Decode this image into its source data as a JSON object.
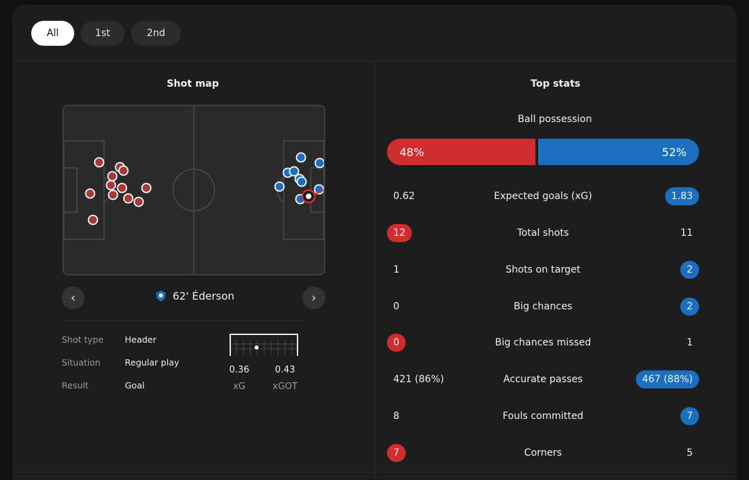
{
  "tabs": [
    {
      "label": "All",
      "active": true
    },
    {
      "label": "1st",
      "active": false
    },
    {
      "label": "2nd",
      "active": false
    }
  ],
  "shot_map": {
    "title": "Shot map",
    "selected_shot": {
      "minute_player": "62' Éderson",
      "team_crest": "atalanta-crest-icon"
    },
    "details": [
      {
        "label": "Shot type",
        "value": "Header"
      },
      {
        "label": "Situation",
        "value": "Regular play"
      },
      {
        "label": "Result",
        "value": "Goal"
      }
    ],
    "xg": {
      "value": "0.36",
      "label": "xG"
    },
    "xgot": {
      "value": "0.43",
      "label": "xGOT"
    },
    "colors": {
      "home": "#a83a35",
      "away": "#1b6fbe",
      "selected": "#d02e2c"
    }
  },
  "top_stats": {
    "title": "Top stats",
    "possession": {
      "label": "Ball possession",
      "home": "48%",
      "away": "52%",
      "home_value": 48,
      "away_value": 52
    },
    "rows": [
      {
        "label": "Expected goals (xG)",
        "home": "0.62",
        "away": "1.83",
        "highlight": "away"
      },
      {
        "label": "Total shots",
        "home": "12",
        "away": "11",
        "highlight": "home"
      },
      {
        "label": "Shots on target",
        "home": "1",
        "away": "2",
        "highlight": "away"
      },
      {
        "label": "Big chances",
        "home": "0",
        "away": "2",
        "highlight": "away"
      },
      {
        "label": "Big chances missed",
        "home": "0",
        "away": "1",
        "highlight": "home"
      },
      {
        "label": "Accurate passes",
        "home": "421 (86%)",
        "away": "467 (88%)",
        "highlight": "away"
      },
      {
        "label": "Fouls committed",
        "home": "8",
        "away": "7",
        "highlight": "away"
      },
      {
        "label": "Corners",
        "home": "7",
        "away": "5",
        "highlight": "home"
      }
    ],
    "colors": {
      "home": "#d02e2c",
      "away": "#1b6fbe"
    }
  }
}
